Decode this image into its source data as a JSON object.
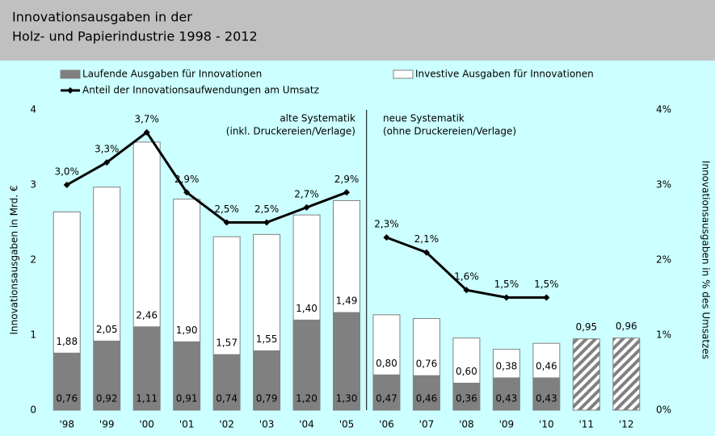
{
  "chart_data": {
    "type": "bar",
    "title": [
      "Innovationsausgaben in der",
      "Holz- und Papierindustrie 1998 - 2012"
    ],
    "ylabel": "Innovationsausgaben in Mrd. €",
    "y2label": "Innovationsausgaben in % des Umsatzes",
    "categories": [
      "'98",
      "'99",
      "'00",
      "'01",
      "'02",
      "'03",
      "'04",
      "'05",
      "'06",
      "'07",
      "'08",
      "'09",
      "'10",
      "'11",
      "'12"
    ],
    "ylim": [
      0,
      4
    ],
    "yticks": [
      0,
      1,
      2,
      3,
      4
    ],
    "y2lim": [
      0,
      4
    ],
    "y2ticks": [
      {
        "value": 0,
        "label": "0%"
      },
      {
        "value": 1,
        "label": "1%"
      },
      {
        "value": 2,
        "label": "2%"
      },
      {
        "value": 3,
        "label": "3%"
      },
      {
        "value": 4,
        "label": "4%"
      }
    ],
    "grid": false,
    "divider_after": "'05",
    "annotations": {
      "left": [
        "alte Systematik",
        "(inkl. Druckereien/Verlage)"
      ],
      "right": [
        "neue Systematik",
        "(ohne Druckereien/Verlage)"
      ]
    },
    "series": [
      {
        "name": "Laufende Ausgaben für Innovationen",
        "color": "#808080",
        "stacked": true,
        "values": [
          0.76,
          0.92,
          1.11,
          0.91,
          0.74,
          0.79,
          1.2,
          1.3,
          0.47,
          0.46,
          0.36,
          0.43,
          0.43,
          null,
          null
        ],
        "value_labels": [
          "0,76",
          "0,92",
          "1,11",
          "0,91",
          "0,74",
          "0,79",
          "1,20",
          "1,30",
          "0,47",
          "0,46",
          "0,36",
          "0,43",
          "0,43",
          null,
          null
        ]
      },
      {
        "name": "Investive Ausgaben für Innovationen",
        "color": "#ffffff",
        "stacked": true,
        "values": [
          1.88,
          2.05,
          2.46,
          1.9,
          1.57,
          1.55,
          1.4,
          1.49,
          0.8,
          0.76,
          0.6,
          0.38,
          0.46,
          null,
          null
        ],
        "value_labels": [
          "1,88",
          "2,05",
          "2,46",
          "1,90",
          "1,57",
          "1,55",
          "1,40",
          "1,49",
          "0,80",
          "0,76",
          "0,60",
          "0,38",
          "0,46",
          null,
          null
        ]
      },
      {
        "color": "#808080",
        "pattern": "hatched",
        "stacked": false,
        "values": [
          null,
          null,
          null,
          null,
          null,
          null,
          null,
          null,
          null,
          null,
          null,
          null,
          null,
          0.95,
          0.96
        ],
        "value_labels": [
          null,
          null,
          null,
          null,
          null,
          null,
          null,
          null,
          null,
          null,
          null,
          null,
          null,
          "0,95",
          "0,96"
        ]
      },
      {
        "name": "Anteil der Innovationsaufwendungen am Umsatz",
        "type": "line",
        "axis": "y2",
        "color": "#000000",
        "values": [
          3.0,
          3.3,
          3.7,
          2.9,
          2.5,
          2.5,
          2.7,
          2.9,
          2.3,
          2.1,
          1.6,
          1.5,
          1.5,
          null,
          null
        ],
        "value_labels": [
          "3,0%",
          "3,3%",
          "3,7%",
          "2,9%",
          "2,5%",
          "2,5%",
          "2,7%",
          "2,9%",
          "2,3%",
          "2,1%",
          "1,6%",
          "1,5%",
          "1,5%",
          null,
          null
        ]
      }
    ]
  }
}
